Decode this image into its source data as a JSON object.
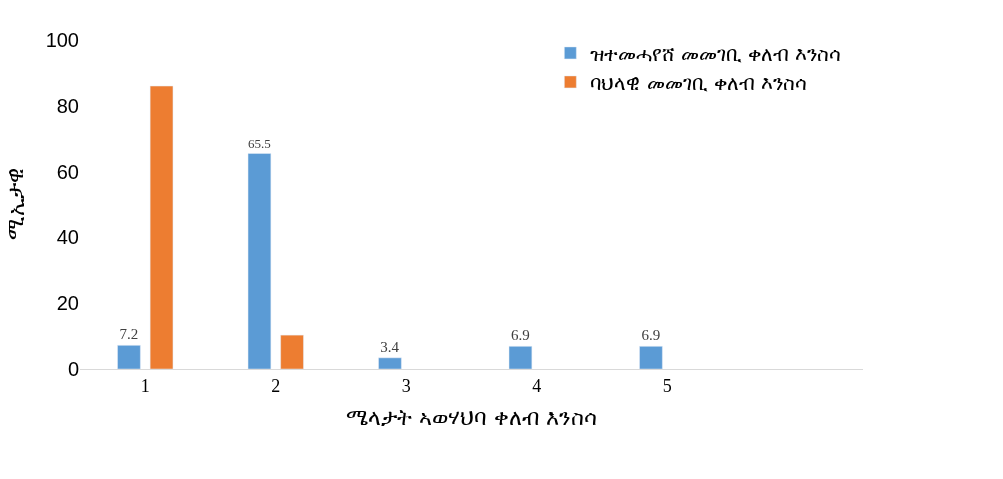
{
  "chart_data": {
    "type": "bar",
    "xlabel": "ሜላታት ኣወሃህባ ቀለብ እንስሳ",
    "ylabel": "ሚኢታዊ",
    "categories": [
      "1",
      "2",
      "3",
      "4",
      "5",
      null
    ],
    "series": [
      {
        "name": "ዝተመሓየሸ መመገቢ ቀለብ እንስሳ",
        "color": "#5b9bd5",
        "values": [
          7.2,
          65.5,
          3.4,
          6.9,
          6.9,
          null
        ],
        "value_labels": [
          "7.2",
          "65.5",
          "3.4",
          "6.9",
          "6.9",
          null
        ]
      },
      {
        "name": "ባህላዊ መመገቢ ቀለብ እንስሳ",
        "color": "#ed7d31",
        "values": [
          86,
          10.3,
          null,
          null,
          null,
          null
        ]
      }
    ],
    "ylim": [
      0,
      100
    ],
    "yticks": [
      0,
      20,
      40,
      60,
      80,
      100
    ],
    "legend": "top right"
  }
}
